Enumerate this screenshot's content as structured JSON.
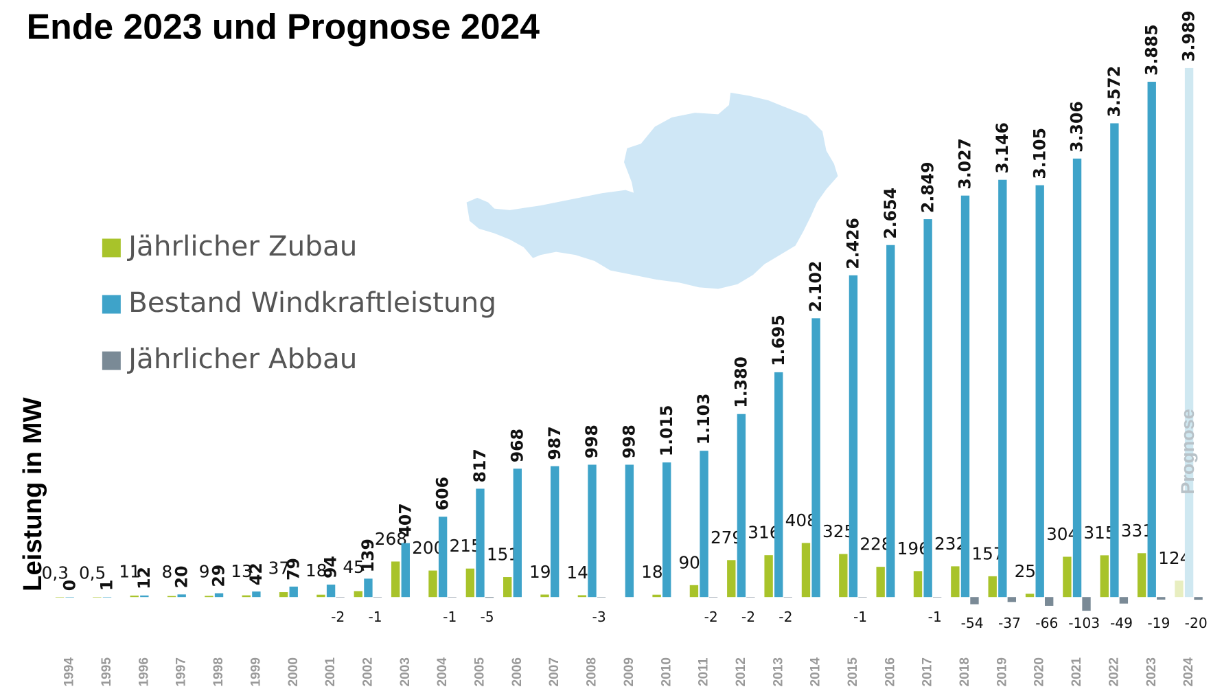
{
  "chart_data": {
    "type": "bar",
    "title": "Ende 2023 und Prognose 2024",
    "y_label": "Leistung in MW",
    "categories": [
      "1994",
      "1995",
      "1996",
      "1997",
      "1998",
      "1999",
      "2000",
      "2001",
      "2002",
      "2003",
      "2004",
      "2005",
      "2006",
      "2007",
      "2008",
      "2009",
      "2010",
      "2011",
      "2012",
      "2013",
      "2014",
      "2015",
      "2016",
      "2017",
      "2018",
      "2019",
      "2020",
      "2021",
      "2022",
      "2023",
      "2024"
    ],
    "series": [
      {
        "name": "Jährlicher Zubau",
        "color": "#a8c32a",
        "forecast_color": "#e8eec0",
        "values": [
          0.3,
          0.5,
          11,
          8,
          9,
          13,
          37,
          18,
          45,
          268,
          200,
          215,
          151,
          19,
          14,
          null,
          18,
          90,
          279,
          316,
          408,
          325,
          228,
          196,
          232,
          157,
          25,
          304,
          315,
          331,
          124
        ],
        "value_labels": [
          "0,3",
          "0,5",
          "11",
          "8",
          "9",
          "13",
          "37",
          "18",
          "45",
          "268",
          "200",
          "215",
          "151",
          "19",
          "14",
          null,
          "18",
          "90",
          "279",
          "316",
          "408",
          "325",
          "228",
          "196",
          "232",
          "157",
          "25",
          "304",
          "315",
          "331",
          "124"
        ]
      },
      {
        "name": "Bestand Windkraftleistung",
        "color": "#3ea3c9",
        "forecast_color": "#cfe8f1",
        "values": [
          0,
          1,
          12,
          20,
          29,
          42,
          79,
          94,
          139,
          407,
          606,
          817,
          968,
          987,
          998,
          998,
          1015,
          1103,
          1380,
          1695,
          2102,
          2426,
          2654,
          2849,
          3027,
          3146,
          3105,
          3306,
          3572,
          3885,
          3989
        ],
        "value_labels": [
          "0",
          "1",
          "12",
          "20",
          "29",
          "42",
          "79",
          "94",
          "139",
          "407",
          "606",
          "817",
          "968",
          "987",
          "998",
          "998",
          "1.015",
          "1.103",
          "1.380",
          "1.695",
          "2.102",
          "2.426",
          "2.654",
          "2.849",
          "3.027",
          "3.146",
          "3.105",
          "3.306",
          "3.572",
          "3.885",
          "3.989"
        ]
      },
      {
        "name": "Jährlicher Abbau",
        "color": "#7a8a96",
        "forecast_color": "#7a8a96",
        "values": [
          null,
          null,
          null,
          null,
          null,
          null,
          null,
          -2,
          -1,
          null,
          -1,
          -5,
          null,
          null,
          -3,
          null,
          null,
          -2,
          -2,
          -2,
          null,
          -1,
          null,
          -1,
          -54,
          -37,
          -66,
          -103,
          -49,
          -19,
          -20
        ]
      }
    ],
    "annotation": {
      "text": "Prognose",
      "category": "2024"
    }
  }
}
